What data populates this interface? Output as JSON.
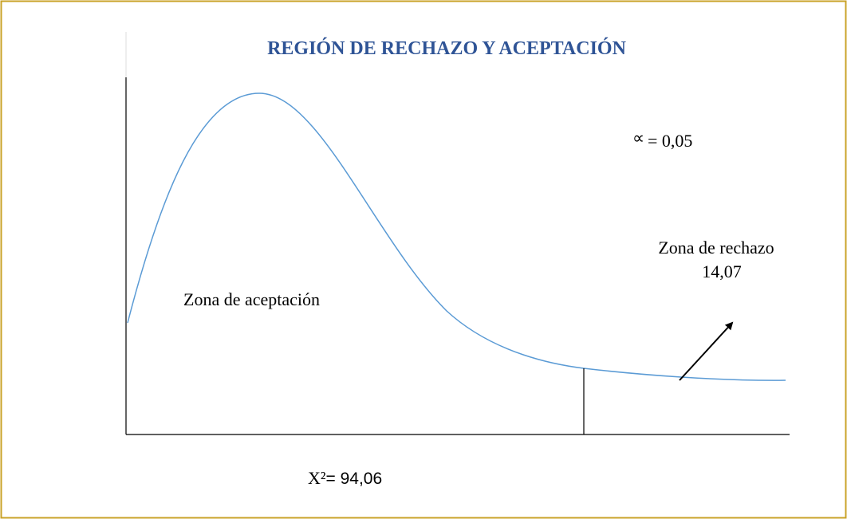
{
  "title": "REGIÓN DE RECHAZO Y ACEPTACIÓN",
  "alpha": {
    "symbol": "∝",
    "value": "= 0,05"
  },
  "rejection_zone": {
    "label": "Zona de rechazo",
    "value": "14,07"
  },
  "acceptance_zone": {
    "label": "Zona de aceptación"
  },
  "statistic": {
    "symbol": "X²",
    "value": "= 94,06"
  }
}
